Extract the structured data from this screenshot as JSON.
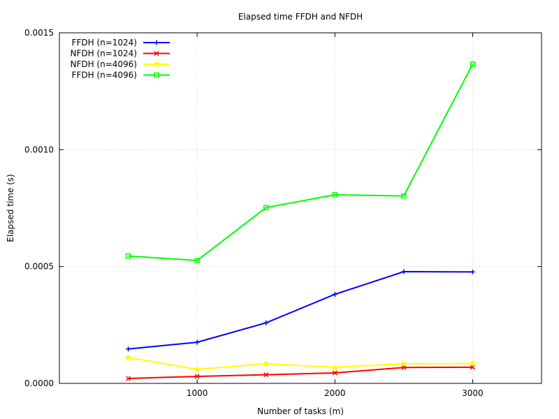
{
  "chart_data": {
    "type": "line",
    "title": "Elapsed time FFDH and NFDH",
    "xlabel": "Number of tasks (m)",
    "ylabel": "Elapsed time (s)",
    "xlim": [
      0,
      3500
    ],
    "ylim": [
      0,
      0.0015
    ],
    "x_ticks": [
      1000,
      2000,
      3000
    ],
    "x_tick_labels": [
      "1000",
      "2000",
      "3000"
    ],
    "y_ticks": [
      0,
      0.0005,
      0.001,
      0.0015
    ],
    "y_tick_labels": [
      "0.0000",
      "0.0005",
      "0.0010",
      "0.0015"
    ],
    "grid": true,
    "legend_position": "top-left",
    "x": [
      500,
      1000,
      1500,
      2000,
      2500,
      3000
    ],
    "series": [
      {
        "name": "FFDH (n=1024)",
        "color": "#0000ff",
        "marker": "plus",
        "values": [
          0.000147,
          0.000176,
          0.000259,
          0.000381,
          0.000478,
          0.000477
        ]
      },
      {
        "name": "NFDH (n=1024)",
        "color": "#ff0000",
        "marker": "cross",
        "values": [
          2.1e-05,
          3e-05,
          3.7e-05,
          4.5e-05,
          6.8e-05,
          6.9e-05
        ]
      },
      {
        "name": "NFDH (n=4096)",
        "color": "#ffff00",
        "marker": "filled-square",
        "values": [
          0.000111,
          6e-05,
          8.4e-05,
          6.9e-05,
          8.4e-05,
          8.5e-05
        ]
      },
      {
        "name": "FFDH (n=4096)",
        "color": "#00ff00",
        "marker": "open-square",
        "values": [
          0.000545,
          0.000526,
          0.000752,
          0.000807,
          0.000802,
          0.001366
        ]
      }
    ]
  }
}
